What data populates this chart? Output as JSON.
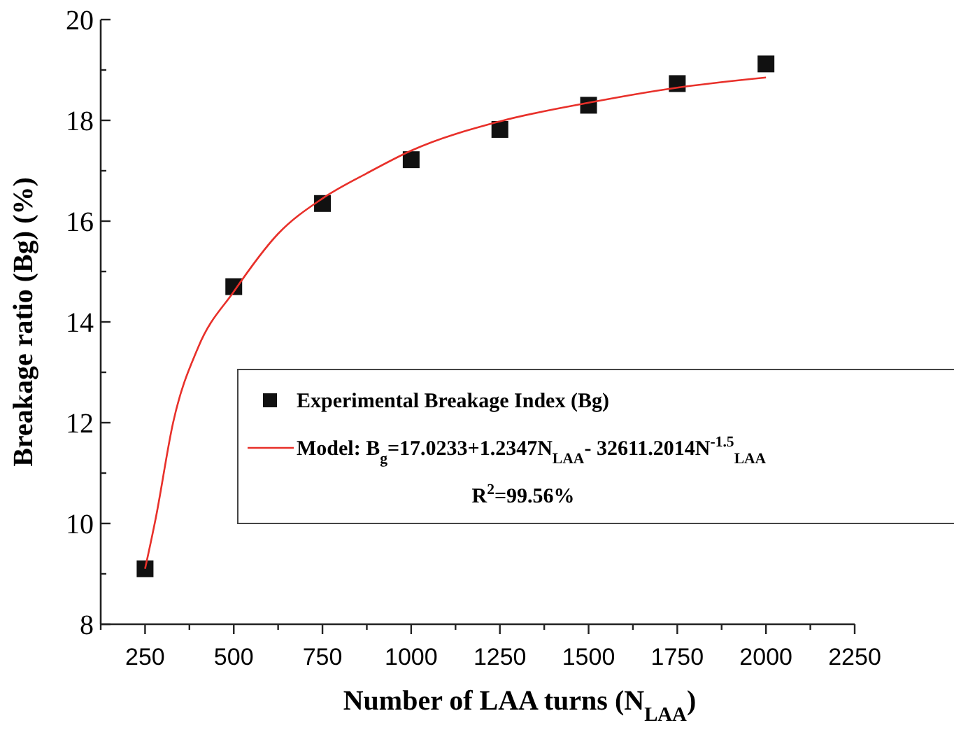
{
  "chart_data": {
    "type": "scatter",
    "xlabel": "Number of LAA  turns (N$_{LAA}$)",
    "ylabel": "Breakage ratio (Bg) (%)",
    "xlim": [
      125,
      2250
    ],
    "xticks": [
      {
        "value": 125,
        "label": null
      },
      250,
      {
        "value": 375,
        "label": null
      },
      500,
      {
        "value": 625,
        "label": null
      },
      750,
      {
        "value": 875,
        "label": null
      },
      1000,
      {
        "value": 1125,
        "label": null
      },
      1250,
      {
        "value": 1375,
        "label": null
      },
      1500,
      {
        "value": 1625,
        "label": null
      },
      1750,
      {
        "value": 1875,
        "label": null
      },
      2000,
      {
        "value": 2125,
        "label": null
      },
      2250
    ],
    "ylim": [
      8,
      20
    ],
    "yticks": [
      8,
      {
        "value": 9,
        "label": null
      },
      10,
      {
        "value": 11,
        "label": null
      },
      12,
      {
        "value": 13,
        "label": null
      },
      14,
      {
        "value": 15,
        "label": null
      },
      16,
      {
        "value": 17,
        "label": null
      },
      18,
      {
        "value": 19,
        "label": null
      },
      20
    ],
    "marker": "square",
    "grid": false,
    "legend": "right",
    "series": [
      {
        "name": "Experimental Breakage Index (Bg)",
        "color": "#111111",
        "x": [
          250,
          500,
          750,
          1000,
          1250,
          1500,
          1750,
          2000
        ],
        "values": [
          9.1,
          14.7,
          16.35,
          17.22,
          17.82,
          18.3,
          18.73,
          19.12
        ]
      },
      {
        "name": "Model: B$_{g}$=17.0233+1.2347N$_{LAA}$- 32611.2014N$^{-1.5}$$_{LAA}$",
        "type": "line",
        "marker": "none",
        "color": "#e8302a",
        "x": [
          250,
          280,
          329,
          400,
          500,
          625,
          750,
          875,
          1000,
          1250,
          1500,
          1750,
          2000
        ],
        "values": [
          9.1,
          10.1,
          12,
          13.5,
          14.6,
          15.75,
          16.45,
          16.95,
          17.4,
          17.98,
          18.35,
          18.65,
          18.85
        ]
      }
    ],
    "annotations": [
      "R$^{2}$=99.56%"
    ]
  }
}
